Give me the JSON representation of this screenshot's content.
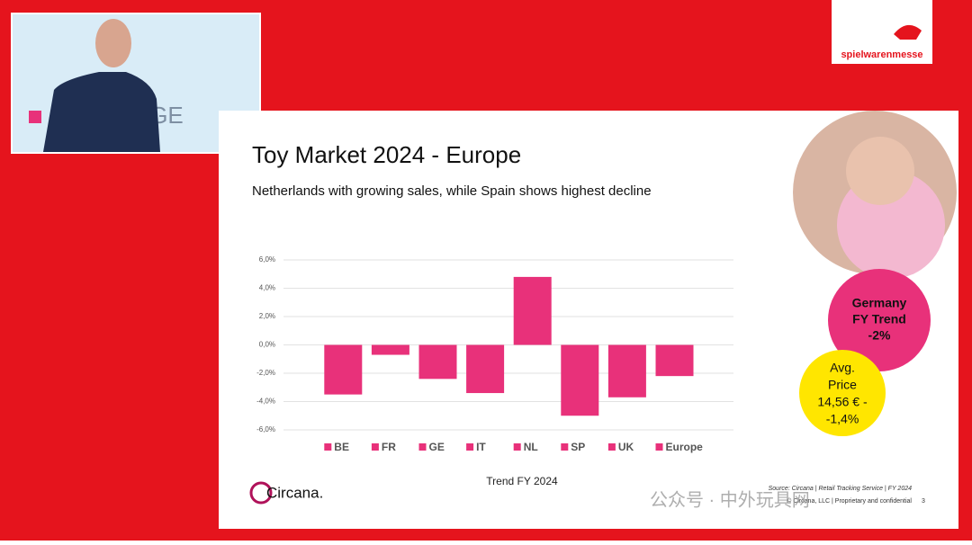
{
  "chart_data": {
    "type": "bar",
    "categories": [
      "Trend FY 2024"
    ],
    "series": [
      {
        "name": "BE",
        "color": "#e8317a",
        "values": [
          -3.5
        ]
      },
      {
        "name": "FR",
        "color": "#e8317a",
        "values": [
          -0.7
        ]
      },
      {
        "name": "GE",
        "color": "#e8317a",
        "values": [
          -2.4
        ]
      },
      {
        "name": "IT",
        "color": "#e8317a",
        "values": [
          -3.4
        ]
      },
      {
        "name": "NL",
        "color": "#e8317a",
        "values": [
          4.8
        ]
      },
      {
        "name": "SP",
        "color": "#e8317a",
        "values": [
          -5.0
        ]
      },
      {
        "name": "UK",
        "color": "#e8317a",
        "values": [
          -3.7
        ]
      },
      {
        "name": "Europe",
        "color": "#e8317a",
        "values": [
          -2.2
        ]
      }
    ],
    "ylim": [
      -6,
      6
    ],
    "yticks": [
      {
        "value": -6,
        "label": "-6,0%"
      },
      {
        "value": -4,
        "label": "-4,0%"
      },
      {
        "value": -2,
        "label": "-2,0%"
      },
      {
        "value": 0,
        "label": "0,0%"
      },
      {
        "value": 2,
        "label": "2,0%"
      },
      {
        "value": 4,
        "label": "4,0%"
      },
      {
        "value": 6,
        "label": "6,0%"
      }
    ],
    "grid": true,
    "legend": "bottom"
  },
  "slide": {
    "title": "Toy Market 2024 - Europe",
    "subtitle": "Netherlands with growing sales, while Spain shows highest decline",
    "germany": [
      "Germany",
      "FY Trend",
      "-2%"
    ],
    "avg_price": [
      "Avg.",
      "Price",
      "14,56 € -",
      "-1,4%"
    ],
    "source": "Source: Circana | Retail Tracking Service | FY 2024",
    "copyright": "© Circana, LLC | Proprietary and confidential",
    "page": "3",
    "brand": "Circana."
  },
  "logo": "spielwarenmesse",
  "video_text": "GE",
  "watermark": "公众号 · 中外玩具网"
}
